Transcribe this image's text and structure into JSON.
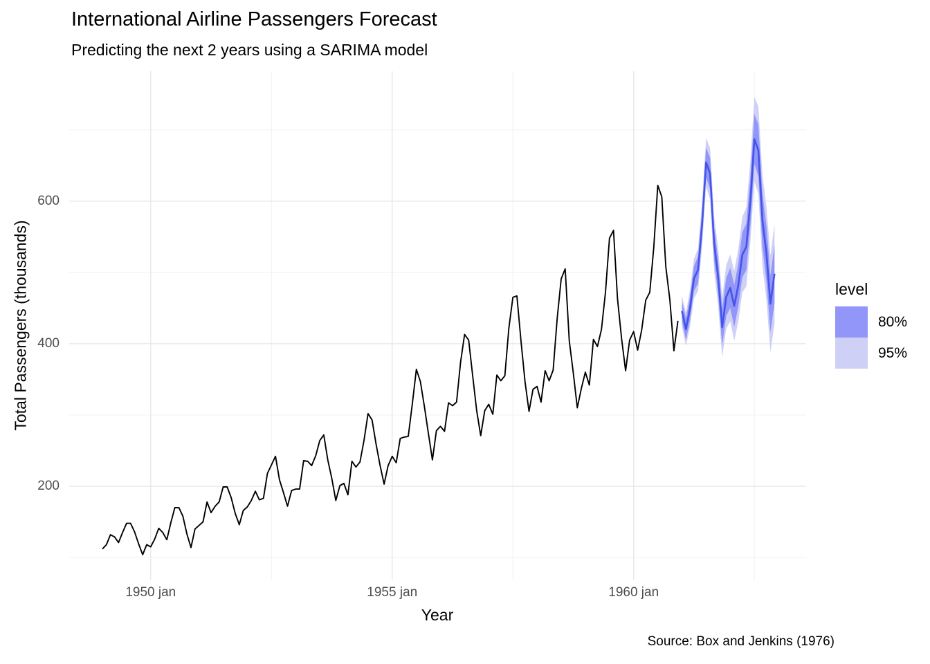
{
  "title": "International Airline Passengers Forecast",
  "subtitle": "Predicting the next 2 years using a SARIMA model",
  "caption": "Source: Box and Jenkins (1976)",
  "chart_data": {
    "type": "line",
    "title": "International Airline Passengers Forecast",
    "subtitle": "Predicting the next 2 years using a SARIMA model",
    "xlabel": "Year",
    "ylabel": "Total Passengers (thousands)",
    "caption": "Source: Box and Jenkins (1976)",
    "grid": true,
    "background": "#ffffff",
    "grid_color_major": "#e8e8e8",
    "grid_color_minor": "#f0f0f0",
    "xlim": [
      1948.312,
      1963.572
    ],
    "ylim": [
      69.0,
      782.2
    ],
    "x_ticks": [
      {
        "value": 1950,
        "label": "1950 jan"
      },
      {
        "value": 1955,
        "label": "1955 jan"
      },
      {
        "value": 1960,
        "label": "1960 jan"
      }
    ],
    "x_minor_ticks": [
      1952.5,
      1957.5,
      1962.5
    ],
    "y_ticks": [
      {
        "value": 200,
        "label": "200"
      },
      {
        "value": 400,
        "label": "400"
      },
      {
        "value": 600,
        "label": "600"
      }
    ],
    "y_minor_ticks": [
      100,
      300,
      500,
      700
    ],
    "legend": {
      "title": "level",
      "position": "right",
      "entries": [
        {
          "label": "80%",
          "color": "#9296f8"
        },
        {
          "label": "95%",
          "color": "#cfd0f6"
        }
      ]
    },
    "series": [
      {
        "name": "observed",
        "role": "history",
        "color": "#000000",
        "line_width": 1.9,
        "start_year": 1949,
        "frequency": 12,
        "values": [
          112,
          118,
          132,
          129,
          121,
          135,
          148,
          148,
          136,
          119,
          104,
          118,
          115,
          126,
          141,
          135,
          125,
          149,
          170,
          170,
          158,
          133,
          114,
          140,
          145,
          150,
          178,
          163,
          172,
          178,
          199,
          199,
          184,
          162,
          146,
          166,
          171,
          180,
          193,
          181,
          183,
          218,
          230,
          242,
          209,
          191,
          172,
          194,
          196,
          196,
          236,
          235,
          229,
          243,
          264,
          272,
          237,
          211,
          180,
          201,
          204,
          188,
          235,
          227,
          234,
          264,
          302,
          293,
          259,
          229,
          203,
          229,
          242,
          233,
          267,
          269,
          270,
          315,
          364,
          347,
          312,
          274,
          237,
          278,
          284,
          277,
          317,
          313,
          318,
          374,
          413,
          405,
          355,
          306,
          271,
          306,
          315,
          301,
          356,
          348,
          355,
          422,
          465,
          467,
          404,
          347,
          305,
          336,
          340,
          318,
          362,
          348,
          363,
          435,
          491,
          505,
          404,
          359,
          310,
          337,
          360,
          342,
          406,
          396,
          420,
          472,
          548,
          559,
          463,
          407,
          362,
          405,
          417,
          391,
          419,
          461,
          472,
          535,
          622,
          606,
          508,
          461,
          390,
          432
        ]
      },
      {
        "name": "forecast",
        "role": "forecast",
        "color": "#4454eb",
        "line_width": 2.6,
        "start_year": 1961,
        "frequency": 12,
        "mean": [
          445.6,
          420.4,
          449.2,
          491.5,
          503.5,
          566.9,
          654.3,
          638.6,
          540.9,
          494.1,
          423.3,
          465.5,
          478.3,
          453.0,
          481.8,
          524.5,
          536.0,
          599.5,
          686.9,
          671.2,
          573.5,
          526.8,
          456.0,
          498.2
        ],
        "lo80": [
          431.6,
          405.2,
          432.9,
          474.0,
          484.8,
          547.0,
          633.3,
          616.4,
          517.5,
          469.5,
          397.6,
          438.6,
          450.2,
          423.7,
          451.4,
          492.9,
          503.2,
          565.5,
          651.8,
          634.9,
          536.0,
          488.1,
          416.2,
          457.2
        ],
        "hi80": [
          459.6,
          435.6,
          465.5,
          509.0,
          522.2,
          586.8,
          675.3,
          660.8,
          564.3,
          518.7,
          449.0,
          492.4,
          506.4,
          482.3,
          512.2,
          556.1,
          568.8,
          633.5,
          722.0,
          707.5,
          611.0,
          565.5,
          495.8,
          539.2
        ],
        "lo95": [
          424.2,
          396.9,
          423.6,
          463.8,
          473.6,
          534.9,
          620.2,
          602.4,
          502.6,
          453.7,
          380.8,
          420.9,
          431.5,
          404.1,
          430.8,
          471.4,
          480.8,
          542.2,
          627.5,
          609.7,
          509.8,
          461.0,
          388.1,
          428.2
        ],
        "hi95": [
          467.0,
          443.9,
          474.8,
          519.2,
          533.4,
          598.9,
          688.4,
          674.8,
          579.2,
          534.5,
          465.8,
          510.1,
          525.1,
          501.9,
          532.8,
          577.6,
          591.2,
          656.8,
          746.3,
          732.7,
          637.2,
          592.6,
          523.9,
          568.2
        ]
      }
    ]
  }
}
